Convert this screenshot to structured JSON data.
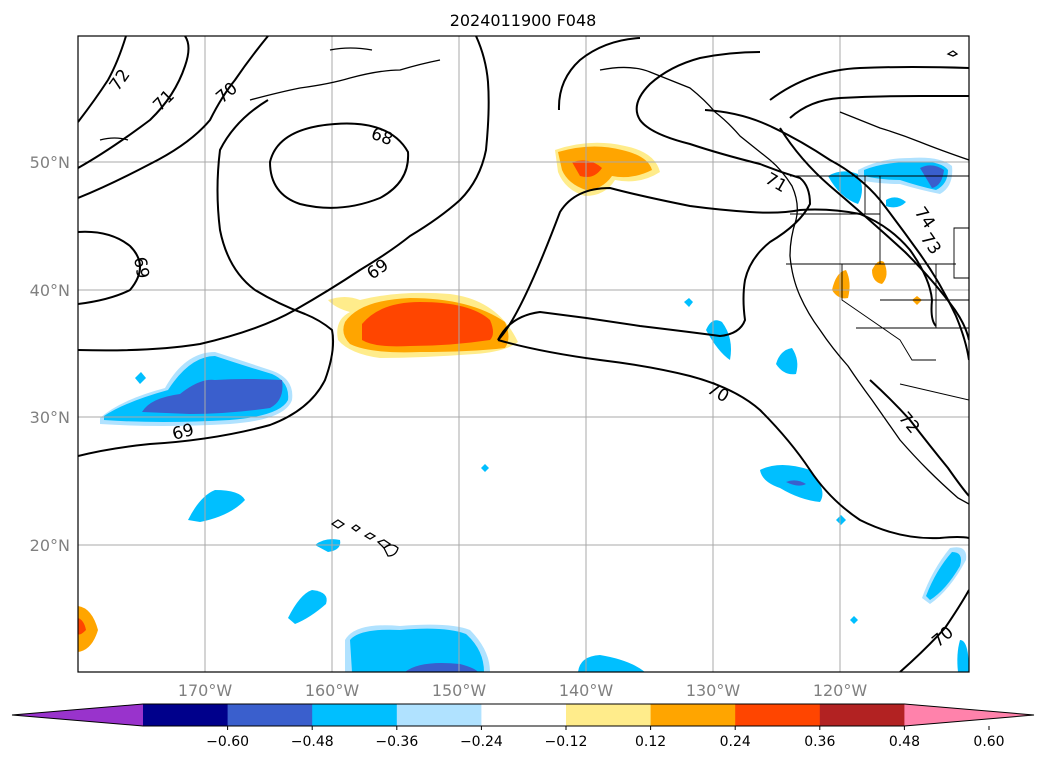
{
  "map": {
    "title": "2024011900 F048",
    "lat_labels": [
      "50°N",
      "40°N",
      "30°N",
      "20°N"
    ],
    "lon_labels": [
      "170°W",
      "160°W",
      "150°W",
      "140°W",
      "130°W",
      "120°W"
    ],
    "contour_labels": [
      "72",
      "71",
      "70",
      "68",
      "69",
      "69",
      "69",
      "70",
      "71",
      "74",
      "73",
      "72",
      "70"
    ]
  },
  "colorbar": {
    "tick_labels": [
      "−0.60",
      "−0.48",
      "−0.36",
      "−0.24",
      "−0.12",
      "0.12",
      "0.24",
      "0.36",
      "0.48",
      "0.60"
    ],
    "colors": [
      "#9933cc",
      "#00008b",
      "#3a5fcd",
      "#00bfff",
      "#b0e2ff",
      "#ffffff",
      "#ffec8b",
      "#ffa500",
      "#ff4500",
      "#b22222",
      "#ff82ab"
    ]
  }
}
